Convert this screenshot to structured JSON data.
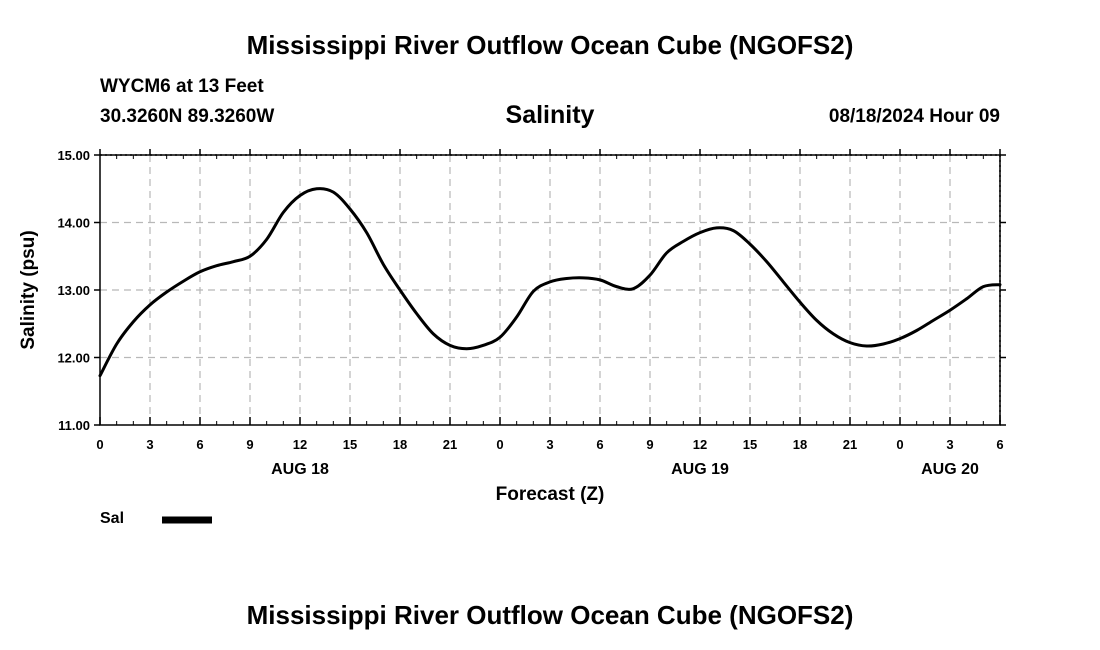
{
  "page": {
    "title_top": "Mississippi River Outflow Ocean Cube (NGOFS2)",
    "title_bottom": "Mississippi River Outflow Ocean Cube (NGOFS2)"
  },
  "header": {
    "station": "WYCM6 at 13 Feet",
    "coords": "30.3260N  89.3260W",
    "chart_name": "Salinity",
    "datetime": "08/18/2024 Hour 09"
  },
  "legend": {
    "label": "Sal",
    "color": "#000000"
  },
  "chart_data": {
    "type": "line",
    "title": "Salinity",
    "xlabel": "Forecast (Z)",
    "ylabel": "Salinity (psu)",
    "xlim": [
      0,
      54
    ],
    "ylim": [
      11.0,
      15.0
    ],
    "y_ticks": [
      "11.00",
      "12.00",
      "13.00",
      "14.00",
      "15.00"
    ],
    "x_tick_labels": [
      "0",
      "3",
      "6",
      "9",
      "12",
      "15",
      "18",
      "21",
      "0",
      "3",
      "6",
      "9",
      "12",
      "15",
      "18",
      "21",
      "0",
      "3",
      "6"
    ],
    "date_labels": [
      {
        "label": "AUG 18",
        "hour": 12
      },
      {
        "label": "AUG 19",
        "hour": 36
      },
      {
        "label": "AUG 20",
        "hour": 51
      }
    ],
    "grid": true,
    "series": [
      {
        "name": "Sal",
        "x": [
          0,
          1,
          2,
          3,
          4,
          5,
          6,
          7,
          8,
          9,
          10,
          11,
          12,
          13,
          14,
          15,
          16,
          17,
          18,
          19,
          20,
          21,
          22,
          23,
          24,
          25,
          26,
          27,
          28,
          29,
          30,
          31,
          32,
          33,
          34,
          35,
          36,
          37,
          38,
          39,
          40,
          41,
          42,
          43,
          44,
          45,
          46,
          47,
          48,
          49,
          50,
          51,
          52,
          53,
          54
        ],
        "values": [
          11.73,
          12.2,
          12.53,
          12.78,
          12.97,
          13.13,
          13.27,
          13.36,
          13.42,
          13.5,
          13.75,
          14.15,
          14.4,
          14.5,
          14.45,
          14.2,
          13.85,
          13.38,
          13.0,
          12.65,
          12.35,
          12.18,
          12.13,
          12.18,
          12.3,
          12.6,
          12.98,
          13.12,
          13.17,
          13.18,
          13.15,
          13.05,
          13.02,
          13.22,
          13.55,
          13.72,
          13.85,
          13.92,
          13.88,
          13.68,
          13.42,
          13.12,
          12.82,
          12.55,
          12.35,
          12.22,
          12.17,
          12.2,
          12.28,
          12.4,
          12.55,
          12.7,
          12.87,
          13.05,
          13.08
        ]
      }
    ]
  }
}
